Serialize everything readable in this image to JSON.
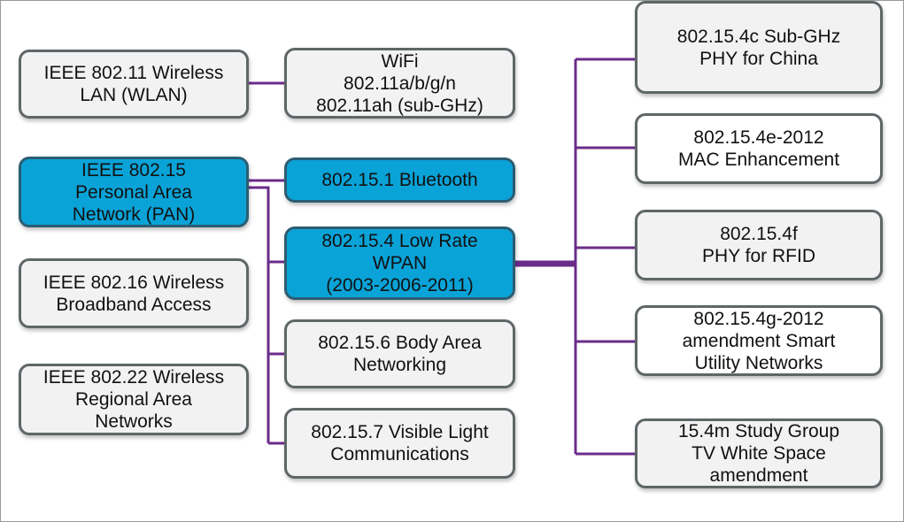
{
  "colors": {
    "connector": "#6b2c8a",
    "highlight": "#0aa3d8",
    "box": "#f2f2f3",
    "border": "#5f6668"
  },
  "left": [
    {
      "label": "IEEE 802.11 Wireless\nLAN (WLAN)"
    },
    {
      "label": "IEEE 802.15\nPersonal Area\nNetwork (PAN)"
    },
    {
      "label": "IEEE 802.16 Wireless\nBroadband Access"
    },
    {
      "label": "IEEE 802.22 Wireless\nRegional Area\nNetworks"
    }
  ],
  "middle": [
    {
      "label": "WiFi\n802.11a/b/g/n\n802.11ah (sub-GHz)"
    },
    {
      "label": "802.15.1 Bluetooth"
    },
    {
      "label": "802.15.4 Low Rate\nWPAN\n(2003-2006-2011)"
    },
    {
      "label": "802.15.6 Body Area\nNetworking"
    },
    {
      "label": "802.15.7 Visible Light\nCommunications"
    }
  ],
  "right": [
    {
      "label": "802.15.4c Sub-GHz\nPHY for China"
    },
    {
      "label": "802.15.4e-2012\nMAC Enhancement"
    },
    {
      "label": "802.15.4f\nPHY for RFID"
    },
    {
      "label": "802.15.4g-2012\namendment Smart\nUtility Networks"
    },
    {
      "label": "15.4m Study Group\nTV White Space\namendment"
    }
  ]
}
